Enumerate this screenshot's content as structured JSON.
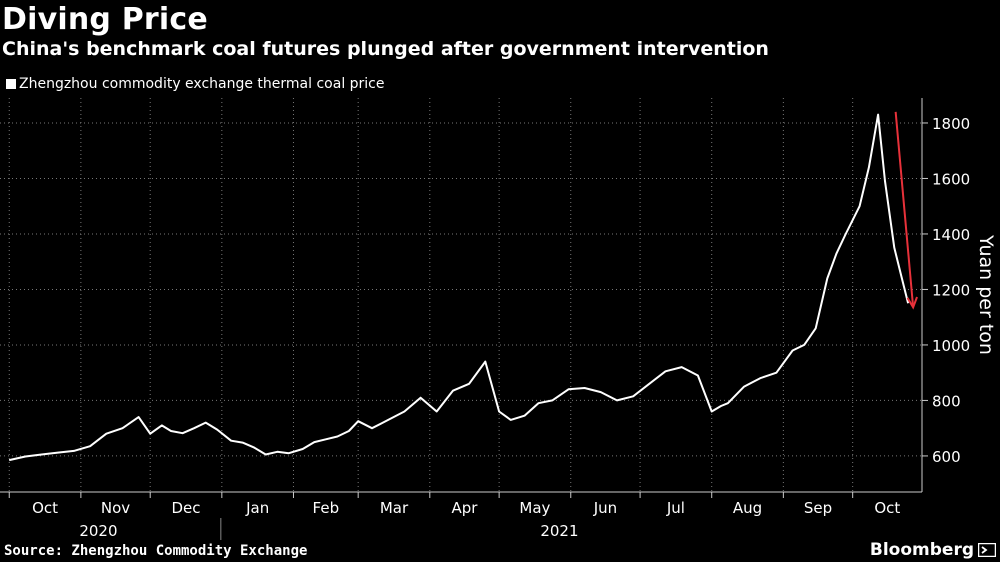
{
  "chart_data": {
    "type": "line",
    "title": "Diving Price",
    "subtitle": "China's benchmark coal futures plunged after government intervention",
    "ylabel": "Yuan per ton",
    "ylim": [
      470,
      1890
    ],
    "yticks": [
      600,
      800,
      1000,
      1200,
      1400,
      1600,
      1800
    ],
    "grid": true,
    "legend": "top-left",
    "x_month_labels": [
      "Oct",
      "Nov",
      "Dec",
      "Jan",
      "Feb",
      "Mar",
      "Apr",
      "May",
      "Jun",
      "Jul",
      "Aug",
      "Sep",
      "Oct"
    ],
    "x_year_labels": [
      "2020",
      "2021"
    ],
    "series": [
      {
        "name": "Zhengzhou commodity exchange thermal coal price",
        "color": "#ffffff",
        "x": [
          "2020-10-01",
          "2020-10-08",
          "2020-10-15",
          "2020-10-22",
          "2020-10-29",
          "2020-11-05",
          "2020-11-12",
          "2020-11-19",
          "2020-11-26",
          "2020-12-01",
          "2020-12-06",
          "2020-12-10",
          "2020-12-15",
          "2020-12-20",
          "2020-12-25",
          "2020-12-30",
          "2021-01-05",
          "2021-01-10",
          "2021-01-15",
          "2021-01-20",
          "2021-01-25",
          "2021-01-30",
          "2021-02-05",
          "2021-02-10",
          "2021-02-15",
          "2021-02-20",
          "2021-02-25",
          "2021-03-01",
          "2021-03-07",
          "2021-03-14",
          "2021-03-21",
          "2021-03-28",
          "2021-04-04",
          "2021-04-11",
          "2021-04-18",
          "2021-04-25",
          "2021-05-01",
          "2021-05-06",
          "2021-05-12",
          "2021-05-18",
          "2021-05-24",
          "2021-05-31",
          "2021-06-07",
          "2021-06-14",
          "2021-06-21",
          "2021-06-28",
          "2021-07-05",
          "2021-07-12",
          "2021-07-19",
          "2021-07-26",
          "2021-08-01",
          "2021-08-05",
          "2021-08-08",
          "2021-08-15",
          "2021-08-22",
          "2021-08-29",
          "2021-09-05",
          "2021-09-10",
          "2021-09-15",
          "2021-09-20",
          "2021-09-24",
          "2021-09-28",
          "2021-10-04",
          "2021-10-08",
          "2021-10-12",
          "2021-10-15",
          "2021-10-19",
          "2021-10-22",
          "2021-10-25"
        ],
        "values": [
          585,
          598,
          605,
          612,
          618,
          635,
          680,
          700,
          740,
          680,
          710,
          690,
          682,
          700,
          720,
          695,
          655,
          648,
          630,
          605,
          615,
          610,
          625,
          650,
          660,
          670,
          690,
          725,
          700,
          730,
          760,
          810,
          760,
          835,
          860,
          940,
          760,
          730,
          745,
          790,
          800,
          840,
          845,
          830,
          800,
          815,
          860,
          905,
          920,
          890,
          760,
          780,
          790,
          850,
          880,
          900,
          980,
          1000,
          1060,
          1240,
          1330,
          1400,
          1500,
          1640,
          1830,
          1590,
          1350,
          1250,
          1150
        ]
      }
    ],
    "annotation_arrow": {
      "color": "#e8313a",
      "from": [
        "2021-10-17",
        1840
      ],
      "to": [
        "2021-10-25",
        1150
      ]
    }
  },
  "footer": {
    "source": "Source: Zhengzhou Commodity Exchange",
    "brand": "Bloomberg"
  }
}
